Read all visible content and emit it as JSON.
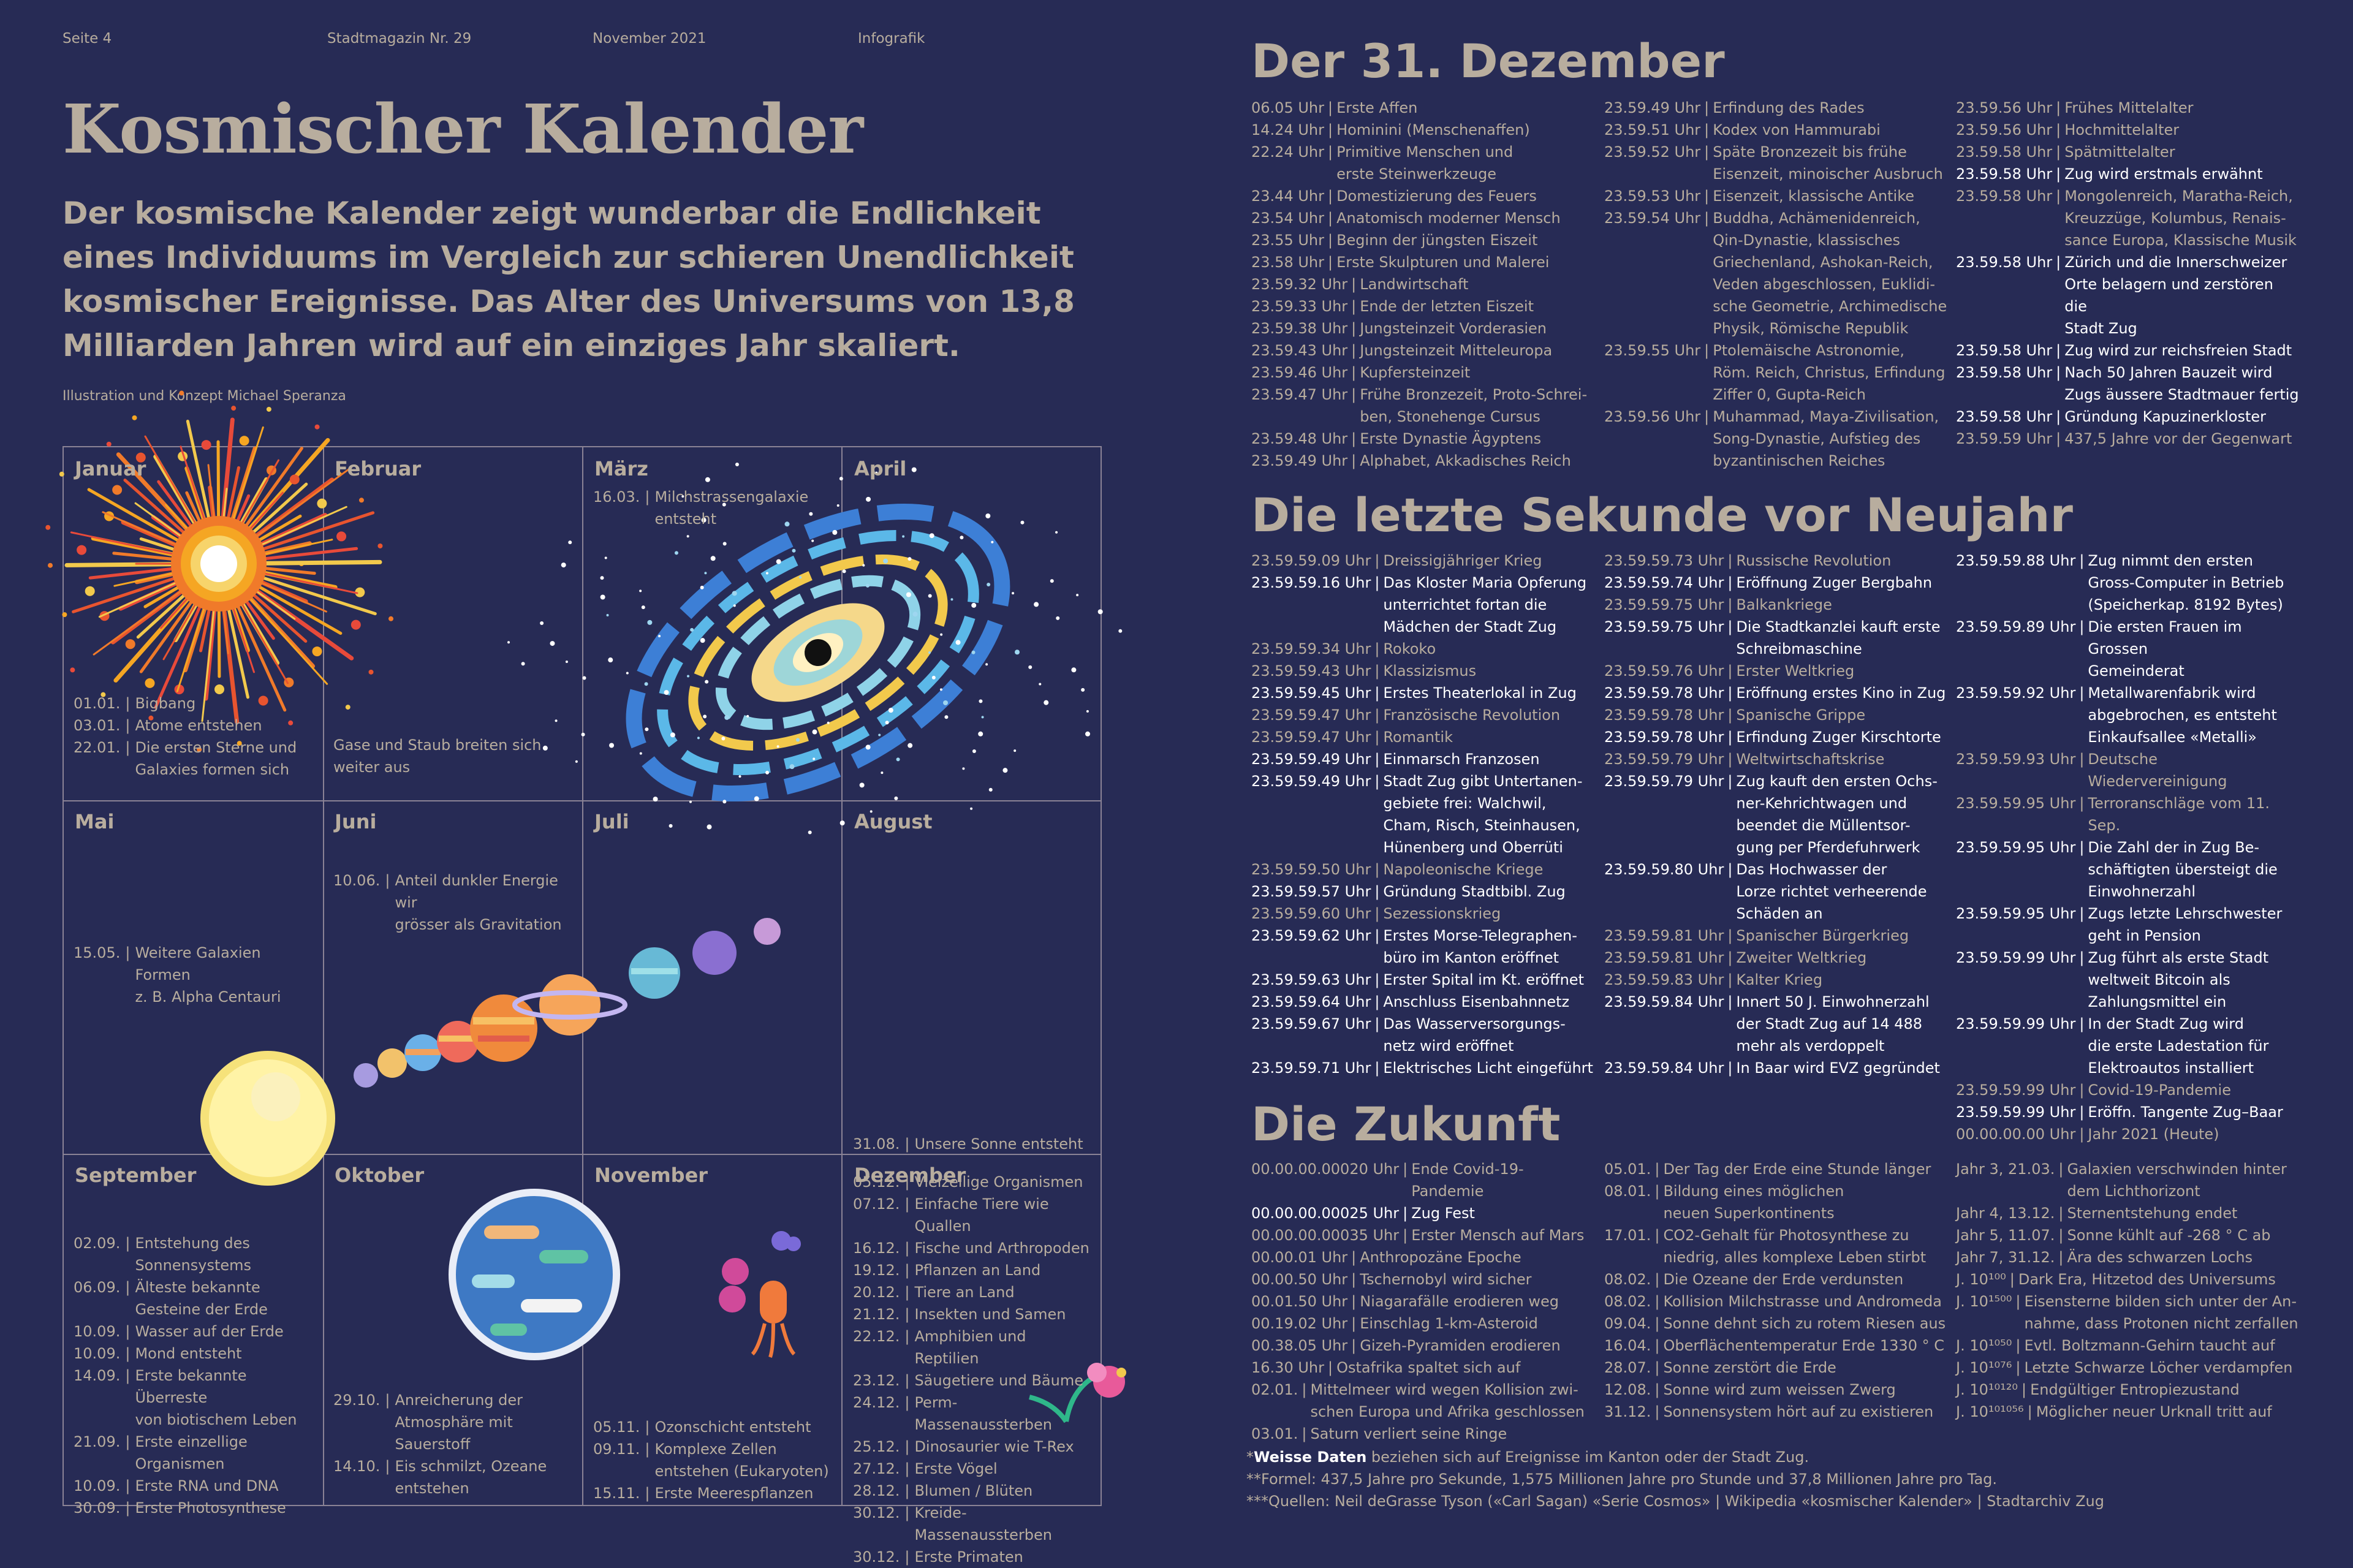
{
  "header": {
    "page": "Seite 4",
    "magazine": "Stadtmagazin Nr. 29",
    "date": "November 2021",
    "category": "Infografik"
  },
  "title": "Kosmischer Kalender",
  "lead": "Der kosmische Kalender zeigt wunderbar die Endlichkeit eines Individuums im Vergleich zur schieren Unendlichkeit kosmischer Ereignisse. Das Alter des Universums von 13,8 Milliarden Jahren wird auf ein einziges Jahr skaliert.",
  "credit": "Illustration und Konzept Michael Speranza",
  "months": [
    "Januar",
    "Februar",
    "März",
    "April",
    "Mai",
    "Juni",
    "Juli",
    "August",
    "September",
    "Oktober",
    "November",
    "Dezember"
  ],
  "calendar": {
    "januar": [
      {
        "d": "01.01.",
        "t": "Bigbang"
      },
      {
        "d": "03.01.",
        "t": "Atome entstehen"
      },
      {
        "d": "22.01.",
        "t": "Die ersten Sterne und\nGalaxies formen sich"
      }
    ],
    "februar": [
      {
        "t": "Gase und Staub breiten sich\nweiter aus"
      }
    ],
    "maerz": [
      {
        "d": "16.03.",
        "t": "Milchstrassengalaxie\nentsteht"
      }
    ],
    "mai": [
      {
        "d": "15.05.",
        "t": "Weitere Galaxien Formen\nz. B. Alpha Centauri"
      }
    ],
    "juni": [
      {
        "d": "10.06.",
        "t": "Anteil dunkler Energie wir\ngrösser als Gravitation"
      }
    ],
    "august": [
      {
        "d": "31.08.",
        "t": "Unsere Sonne entsteht"
      }
    ],
    "september": [
      {
        "d": "02.09.",
        "t": "Entstehung des\nSonnensystems"
      },
      {
        "d": "06.09.",
        "t": "Älteste bekannte\nGesteine der Erde"
      },
      {
        "d": "10.09.",
        "t": "Wasser auf der Erde"
      },
      {
        "d": "10.09.",
        "t": "Mond entsteht"
      },
      {
        "d": "14.09.",
        "t": "Erste bekannte Überreste\nvon biotischem Leben"
      },
      {
        "d": "21.09.",
        "t": "Erste einzellige\nOrganismen"
      },
      {
        "d": "10.09.",
        "t": "Erste RNA und DNA"
      },
      {
        "d": "30.09.",
        "t": "Erste Photosynthese"
      }
    ],
    "oktober": [
      {
        "d": "29.10.",
        "t": "Anreicherung der\nAtmosphäre mit\nSauerstoff"
      },
      {
        "d": "14.10.",
        "t": "Eis schmilzt, Ozeane\nentstehen"
      }
    ],
    "november": [
      {
        "d": "05.11.",
        "t": "Ozonschicht entsteht"
      },
      {
        "d": "09.11.",
        "t": "Komplexe Zellen\nentstehen (Eukaryoten)"
      },
      {
        "d": "15.11.",
        "t": "Erste Meerespflanzen"
      }
    ],
    "dezember": [
      {
        "d": "05.12.",
        "t": "Vielzellige Organismen"
      },
      {
        "d": "07.12.",
        "t": "Einfache Tiere wie Quallen"
      },
      {
        "d": "16.12.",
        "t": "Fische und Arthropoden"
      },
      {
        "d": "19.12.",
        "t": "Pflanzen an Land"
      },
      {
        "d": "20.12.",
        "t": "Tiere an Land"
      },
      {
        "d": "21.12.",
        "t": "Insekten und Samen"
      },
      {
        "d": "22.12.",
        "t": "Amphibien und Reptilien"
      },
      {
        "d": "23.12.",
        "t": "Säugetiere und Bäume"
      },
      {
        "d": "24.12.",
        "t": "Perm-Massenaussterben"
      },
      {
        "d": "25.12.",
        "t": "Dinosaurier wie T-Rex"
      },
      {
        "d": "27.12.",
        "t": "Erste Vögel"
      },
      {
        "d": "28.12.",
        "t": "Blumen / Blüten"
      },
      {
        "d": "30.12.",
        "t": "Kreide-Massenaussterben"
      },
      {
        "d": "30.12.",
        "t": "Erste Primaten"
      }
    ]
  },
  "sections": {
    "dez31": {
      "title": "Der 31. Dezember",
      "cols": [
        [
          {
            "d": "06.05 Uhr",
            "t": "Erste Affen"
          },
          {
            "d": "14.24 Uhr",
            "t": "Hominini (Menschenaffen)"
          },
          {
            "d": "22.24 Uhr",
            "t": "Primitive Menschen und\nerste Steinwerkzeuge"
          },
          {
            "d": "23.44 Uhr",
            "t": "Domestizierung des Feuers"
          },
          {
            "d": "23.54 Uhr",
            "t": "Anatomisch moderner Mensch"
          },
          {
            "d": "23.55 Uhr",
            "t": "Beginn der jüngsten Eiszeit"
          },
          {
            "d": "23.58 Uhr",
            "t": "Erste Skulpturen und Malerei"
          },
          {
            "d": "23.59.32 Uhr",
            "t": "Landwirtschaft"
          },
          {
            "d": "23.59.33 Uhr",
            "t": "Ende der letzten Eiszeit"
          },
          {
            "d": "23.59.38 Uhr",
            "t": "Jungsteinzeit Vorderasien"
          },
          {
            "d": "23.59.43 Uhr",
            "t": "Jungsteinzeit Mitteleuropa"
          },
          {
            "d": "23.59.46 Uhr",
            "t": "Kupfersteinzeit"
          },
          {
            "d": "23.59.47 Uhr",
            "t": "Frühe Bronzezeit, Proto-Schrei-\nben, Stonehenge Cursus"
          },
          {
            "d": "23.59.48 Uhr",
            "t": "Erste Dynastie Ägyptens"
          },
          {
            "d": "23.59.49 Uhr",
            "t": "Alphabet, Akkadisches Reich"
          }
        ],
        [
          {
            "d": "23.59.49 Uhr",
            "t": "Erfindung des Rades"
          },
          {
            "d": "23.59.51 Uhr",
            "t": "Kodex von Hammurabi"
          },
          {
            "d": "23.59.52 Uhr",
            "t": "Späte Bronzezeit bis frühe\nEisenzeit, minoischer Ausbruch"
          },
          {
            "d": "23.59.53 Uhr",
            "t": "Eisenzeit, klassische Antike"
          },
          {
            "d": "23.59.54 Uhr",
            "t": "Buddha, Achämenidenreich,\nQin-Dynastie, klassisches\nGriechenland, Ashokan-Reich,\nVeden abgeschlossen, Euklidi-\nsche Geometrie, Archimedische\nPhysik, Römische Republik"
          },
          {
            "d": "23.59.55 Uhr",
            "t": "Ptolemäische Astronomie,\nRöm. Reich, Christus, Erfindung\nZiffer 0, Gupta-Reich"
          },
          {
            "d": "23.59.56 Uhr",
            "t": "Muhammad, Maya-Zivilisation,\nSong-Dynastie, Aufstieg des\nbyzantinischen Reiches"
          }
        ],
        [
          {
            "d": "23.59.56 Uhr",
            "t": "Frühes Mittelalter"
          },
          {
            "d": "23.59.56 Uhr",
            "t": "Hochmittelalter"
          },
          {
            "d": "23.59.58 Uhr",
            "t": "Spätmittelalter"
          },
          {
            "d": "23.59.58 Uhr",
            "t": "Zug wird erstmals erwähnt",
            "w": true
          },
          {
            "d": "23.59.58 Uhr",
            "t": "Mongolenreich, Maratha-Reich,\nKreuzzüge, Kolumbus, Renais-\nsance Europa, Klassische Musik"
          },
          {
            "d": "23.59.58 Uhr",
            "t": "Zürich und die Innerschweizer\nOrte belagern und zerstören die\nStadt Zug",
            "w": true
          },
          {
            "d": "23.59.58 Uhr",
            "t": "Zug wird zur reichsfreien Stadt",
            "w": true
          },
          {
            "d": "23.59.58 Uhr",
            "t": "Nach 50 Jahren Bauzeit wird\nZugs äussere Stadtmauer fertig",
            "w": true
          },
          {
            "d": "23.59.58 Uhr",
            "t": "Gründung Kapuzinerkloster",
            "w": true
          },
          {
            "d": "23.59.59 Uhr",
            "t": "437,5 Jahre vor der Gegenwart"
          }
        ]
      ]
    },
    "sekunde": {
      "title": "Die letzte Sekunde vor Neujahr",
      "cols": [
        [
          {
            "d": "23.59.59.09 Uhr",
            "t": "Dreissigjähriger Krieg"
          },
          {
            "d": "23.59.59.16 Uhr",
            "t": "Das Kloster Maria Opferung\nunterrichtet fortan die\nMädchen der Stadt Zug",
            "w": true
          },
          {
            "d": "23.59.59.34 Uhr",
            "t": "Rokoko"
          },
          {
            "d": "23.59.59.43 Uhr",
            "t": "Klassizismus"
          },
          {
            "d": "23.59.59.45 Uhr",
            "t": "Erstes Theaterlokal in Zug",
            "w": true
          },
          {
            "d": "23.59.59.47 Uhr",
            "t": "Französische Revolution"
          },
          {
            "d": "23.59.59.47 Uhr",
            "t": "Romantik"
          },
          {
            "d": "23.59.59.49 Uhr",
            "t": "Einmarsch Franzosen",
            "w": true
          },
          {
            "d": "23.59.59.49 Uhr",
            "t": "Stadt Zug gibt Untertanen-\ngebiete frei: Walchwil,\nCham, Risch, Steinhausen,\nHünenberg und Oberrüti",
            "w": true
          },
          {
            "d": "23.59.59.50 Uhr",
            "t": "Napoleonische Kriege"
          },
          {
            "d": "23.59.59.57 Uhr",
            "t": "Gründung Stadtbibl. Zug",
            "w": true
          },
          {
            "d": "23.59.59.60 Uhr",
            "t": "Sezessionskrieg"
          },
          {
            "d": "23.59.59.62 Uhr",
            "t": "Erstes Morse-Telegraphen-\nbüro im Kanton eröffnet",
            "w": true
          },
          {
            "d": "23.59.59.63 Uhr",
            "t": "Erster Spital im Kt. eröffnet",
            "w": true
          },
          {
            "d": "23.59.59.64 Uhr",
            "t": "Anschluss Eisenbahnnetz",
            "w": true
          },
          {
            "d": "23.59.59.67 Uhr",
            "t": "Das Wasserversorgungs-\nnetz wird eröffnet",
            "w": true
          },
          {
            "d": "23.59.59.71 Uhr",
            "t": "Elektrisches Licht eingeführt",
            "w": true
          }
        ],
        [
          {
            "d": "23.59.59.73 Uhr",
            "t": "Russische Revolution"
          },
          {
            "d": "23.59.59.74 Uhr",
            "t": "Eröffnung Zuger Bergbahn",
            "w": true
          },
          {
            "d": "23.59.59.75 Uhr",
            "t": "Balkankriege"
          },
          {
            "d": "23.59.59.75 Uhr",
            "t": "Die Stadtkanzlei kauft erste\nSchreibmaschine",
            "w": true
          },
          {
            "d": "23.59.59.76 Uhr",
            "t": "Erster Weltkrieg"
          },
          {
            "d": "23.59.59.78 Uhr",
            "t": "Eröffnung erstes Kino in Zug",
            "w": true
          },
          {
            "d": "23.59.59.78 Uhr",
            "t": "Spanische Grippe"
          },
          {
            "d": "23.59.59.78 Uhr",
            "t": "Erfindung Zuger Kirschtorte",
            "w": true
          },
          {
            "d": "23.59.59.79 Uhr",
            "t": "Weltwirtschaftskrise"
          },
          {
            "d": "23.59.59.79 Uhr",
            "t": "Zug kauft den ersten Ochs-\nner-Kehrichtwagen und\nbeendet die Müllentsor-\ngung per Pferdefuhrwerk",
            "w": true
          },
          {
            "d": "23.59.59.80 Uhr",
            "t": "Das Hochwasser der\nLorze richtet verheerende\nSchäden an",
            "w": true
          },
          {
            "d": "23.59.59.81 Uhr",
            "t": "Spanischer Bürgerkrieg"
          },
          {
            "d": "23.59.59.81 Uhr",
            "t": "Zweiter Weltkrieg"
          },
          {
            "d": "23.59.59.83 Uhr",
            "t": "Kalter Krieg"
          },
          {
            "d": "23.59.59.84 Uhr",
            "t": "Innert 50 J. Einwohnerzahl\nder Stadt Zug auf 14 488\nmehr als verdoppelt",
            "w": true
          },
          {
            "d": "23.59.59.84 Uhr",
            "t": "In Baar wird EVZ gegründet",
            "w": true
          }
        ],
        [
          {
            "d": "23.59.59.88 Uhr",
            "t": "Zug nimmt den ersten\nGross-Computer in Betrieb\n(Speicherkap. 8192 Bytes)",
            "w": true
          },
          {
            "d": "23.59.59.89 Uhr",
            "t": "Die ersten Frauen im Grossen\nGemeinderat",
            "w": true
          },
          {
            "d": "23.59.59.92 Uhr",
            "t": "Metallwarenfabrik wird\nabgebrochen, es entsteht\nEinkaufsallee «Metalli»",
            "w": true
          },
          {
            "d": "23.59.59.93 Uhr",
            "t": "Deutsche Wiedervereinigung"
          },
          {
            "d": "23.59.59.95 Uhr",
            "t": "Terroranschläge vom 11. Sep."
          },
          {
            "d": "23.59.59.95 Uhr",
            "t": "Die Zahl der in Zug Be-\nschäftigten übersteigt die\nEinwohnerzahl",
            "w": true
          },
          {
            "d": "23.59.59.95 Uhr",
            "t": "Zugs letzte Lehrschwester\ngeht in Pension",
            "w": true
          },
          {
            "d": "23.59.59.99 Uhr",
            "t": "Zug führt als erste Stadt\nweltweit Bitcoin als\nZahlungsmittel ein",
            "w": true
          },
          {
            "d": "23.59.59.99 Uhr",
            "t": "In der Stadt Zug wird\ndie erste Ladestation für\nElektroautos installiert",
            "w": true
          },
          {
            "d": "23.59.59.99 Uhr",
            "t": "Covid-19-Pandemie"
          },
          {
            "d": "23.59.59.99 Uhr",
            "t": "Eröffn. Tangente Zug–Baar",
            "w": true
          },
          {
            "d": "00.00.00.00 Uhr",
            "t": "Jahr 2021 (Heute)"
          }
        ]
      ]
    },
    "zukunft": {
      "title": "Die Zukunft",
      "cols": [
        [
          {
            "d": "00.00.00.00020 Uhr",
            "t": "Ende Covid-19-Pandemie"
          },
          {
            "d": "00.00.00.00025 Uhr",
            "t": "Zug Fest",
            "w": true
          },
          {
            "d": "00.00.00.00035 Uhr",
            "t": "Erster Mensch auf Mars"
          },
          {
            "d": "00.00.01 Uhr",
            "t": "Anthropozäne Epoche"
          },
          {
            "d": "00.00.50 Uhr",
            "t": "Tschernobyl wird sicher"
          },
          {
            "d": "00.01.50 Uhr",
            "t": "Niagarafälle erodieren weg"
          },
          {
            "d": "00.19.02 Uhr",
            "t": "Einschlag 1-km-Asteroid"
          },
          {
            "d": "00.38.05 Uhr",
            "t": "Gizeh-Pyramiden erodieren"
          },
          {
            "d": "16.30 Uhr",
            "t": "Ostafrika spaltet sich auf"
          },
          {
            "d": "02.01.",
            "t": "Mittelmeer wird wegen Kollision zwi-\nschen Europa und Afrika geschlossen"
          },
          {
            "d": "03.01.",
            "t": "Saturn verliert seine Ringe"
          }
        ],
        [
          {
            "d": "05.01.",
            "t": "Der Tag der Erde eine Stunde länger"
          },
          {
            "d": "08.01.",
            "t": "Bildung eines möglichen\nneuen Superkontinents"
          },
          {
            "d": "17.01.",
            "t": "CO2-Gehalt für Photosynthese zu\nniedrig, alles komplexe Leben stirbt"
          },
          {
            "d": "08.02.",
            "t": "Die Ozeane der Erde verdunsten"
          },
          {
            "d": "08.02.",
            "t": "Kollision Milchstrasse und Andromeda"
          },
          {
            "d": "09.04.",
            "t": "Sonne dehnt sich zu rotem Riesen aus"
          },
          {
            "d": "16.04.",
            "t": "Oberflächentemperatur Erde 1330 ° C"
          },
          {
            "d": "28.07.",
            "t": "Sonne zerstört die Erde"
          },
          {
            "d": "12.08.",
            "t": "Sonne wird zum weissen Zwerg"
          },
          {
            "d": "31.12.",
            "t": "Sonnensystem hört auf zu existieren"
          }
        ],
        [
          {
            "d": "Jahr 3, 21.03.",
            "t": "Galaxien verschwinden hinter\ndem Lichthorizont"
          },
          {
            "d": "Jahr 4, 13.12.",
            "t": "Sternentstehung endet"
          },
          {
            "d": "Jahr 5, 11.07.",
            "t": "Sonne kühlt auf -268 ° C ab"
          },
          {
            "d": "Jahr 7, 31.12.",
            "t": "Ära des schwarzen Lochs"
          },
          {
            "d": "J. 10¹⁰⁰",
            "t": "Dark Era, Hitzetod des Universums"
          },
          {
            "d": "J. 10¹⁵⁰⁰",
            "t": "Eisensterne bilden sich unter der An-\nnahme, dass Protonen nicht zerfallen"
          },
          {
            "d": "J. 10¹⁰⁵⁰",
            "t": "Evtl. Boltzmann-Gehirn taucht auf"
          },
          {
            "d": "J. 10¹⁰⁷⁶",
            "t": "Letzte Schwarze Löcher verdampfen"
          },
          {
            "d": "J. 10¹⁰¹²⁰",
            "t": "Endgültiger Entropiezustand"
          },
          {
            "d": "J. 10¹⁰¹⁰⁵⁶",
            "t": "Möglicher neuer Urknall tritt auf"
          }
        ]
      ]
    }
  },
  "notes": {
    "n1_strong": "Weisse Daten",
    "n1": "*Weisse Daten beziehen sich auf Ereignisse im Kanton oder der Stadt Zug.",
    "n1_rest": " beziehen sich auf Ereignisse im Kanton oder der Stadt Zug.",
    "n2": "**Formel: 437,5 Jahre pro Sekunde, 1,575 Millionen Jahre pro Stunde und 37,8 Millionen Jahre pro Tag.",
    "n3": "***Quellen: Neil deGrasse Tyson («Carl Sagan) «Serie Cosmos» | Wikipedia «kosmischer Kalender» | Stadtarchiv Zug"
  },
  "colors": {
    "background": "#272b55",
    "text": "#b8ad9e",
    "highlight": "#ffffff",
    "grid": "#8a8295"
  }
}
